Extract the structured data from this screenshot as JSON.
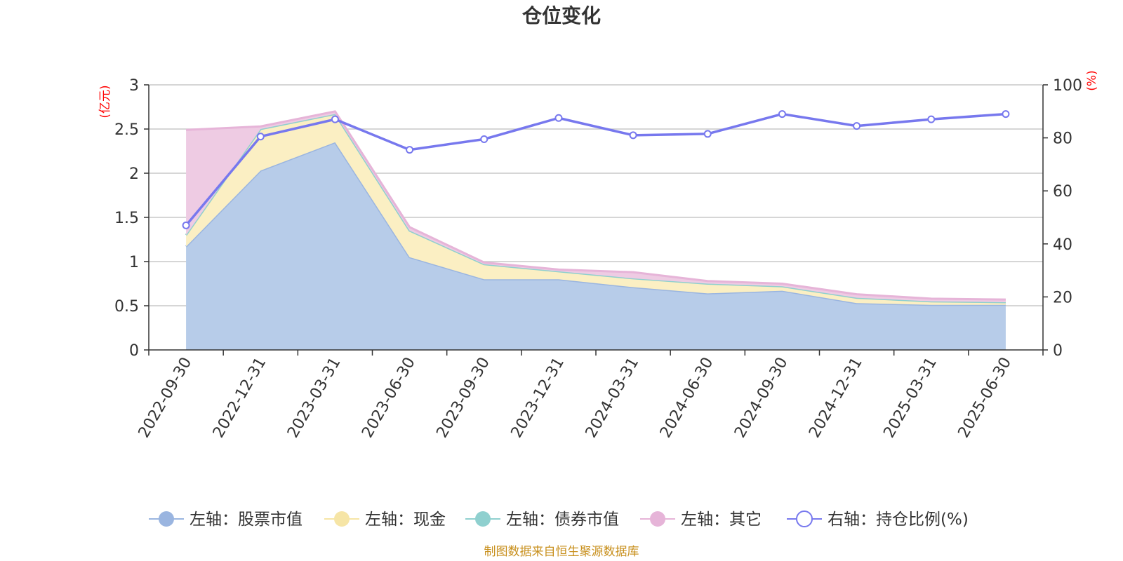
{
  "chart_data": {
    "type": "area",
    "title": "仓位变化",
    "left_axis_unit": "(亿元)",
    "right_axis_unit": "(%)",
    "categories": [
      "2022-09-30",
      "2022-12-31",
      "2023-03-31",
      "2023-06-30",
      "2023-09-30",
      "2023-12-31",
      "2024-03-31",
      "2024-06-30",
      "2024-09-30",
      "2024-12-31",
      "2025-03-31",
      "2025-06-30"
    ],
    "left_ylim": [
      0,
      3
    ],
    "left_ticks": [
      "0",
      "0.5",
      "1",
      "1.5",
      "2",
      "2.5",
      "3"
    ],
    "right_ylim": [
      0,
      100
    ],
    "right_ticks": [
      "0",
      "20",
      "40",
      "60",
      "80",
      "100"
    ],
    "grid": true,
    "legend_position": "bottom",
    "series": [
      {
        "name": "左轴：股票市值",
        "axis": "left",
        "kind": "stacked-area",
        "color": "#9ab5e0",
        "fill": "#b7cce9",
        "values": [
          1.17,
          2.03,
          2.35,
          1.05,
          0.8,
          0.8,
          0.71,
          0.64,
          0.67,
          0.53,
          0.51,
          0.51
        ]
      },
      {
        "name": "左轴：现金",
        "axis": "left",
        "kind": "stacked-area",
        "color": "#f6e5a6",
        "fill": "#fbefc3",
        "values": [
          0.13,
          0.47,
          0.32,
          0.3,
          0.17,
          0.09,
          0.1,
          0.11,
          0.05,
          0.06,
          0.04,
          0.03
        ]
      },
      {
        "name": "左轴：债券市值",
        "axis": "left",
        "kind": "stacked-area",
        "color": "#8fd0cf",
        "fill": "#b5e2e1",
        "values": [
          0,
          0,
          0,
          0,
          0,
          0,
          0,
          0,
          0,
          0,
          0,
          0
        ]
      },
      {
        "name": "左轴：其它",
        "axis": "left",
        "kind": "stacked-area",
        "color": "#e6b4d8",
        "fill": "#eecbe3",
        "values": [
          1.19,
          0.03,
          0.03,
          0.04,
          0.02,
          0.02,
          0.07,
          0.03,
          0.03,
          0.04,
          0.03,
          0.03
        ]
      },
      {
        "name": "右轴：持仓比例(%)",
        "axis": "right",
        "kind": "line",
        "color": "#7778ee",
        "values": [
          47,
          80.5,
          87,
          75.5,
          79.5,
          87.5,
          81,
          81.5,
          89,
          84.5,
          87,
          89
        ]
      }
    ],
    "source_note": "制图数据来自恒生聚源数据库"
  }
}
